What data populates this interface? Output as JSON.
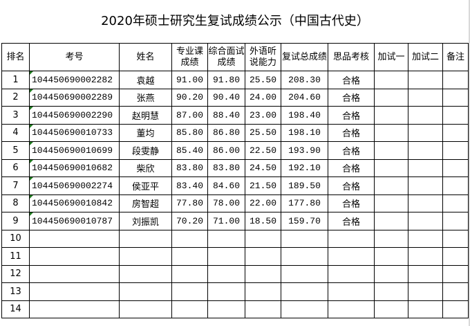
{
  "title": "2020年硕士研究生复试成绩公示（中国古代史）",
  "headers": [
    "排名",
    "考号",
    "姓名",
    "专业课成绩",
    "综合面试成绩",
    "外语听说能力",
    "复试总成绩",
    "思品考核",
    "加试一",
    "加试二",
    "备注"
  ],
  "rows": [
    {
      "rank": "1",
      "id": "104450690002282",
      "name": "袁越",
      "major": "91.00",
      "interview": "91.80",
      "language": "25.50",
      "total": "208.30",
      "moral": "合格",
      "extra1": "",
      "extra2": "",
      "note": ""
    },
    {
      "rank": "2",
      "id": "104450690002289",
      "name": "张燕",
      "major": "90.20",
      "interview": "90.40",
      "language": "24.00",
      "total": "204.60",
      "moral": "合格",
      "extra1": "",
      "extra2": "",
      "note": ""
    },
    {
      "rank": "3",
      "id": "104450690002290",
      "name": "赵明慧",
      "major": "87.00",
      "interview": "88.40",
      "language": "23.00",
      "total": "198.40",
      "moral": "合格",
      "extra1": "",
      "extra2": "",
      "note": ""
    },
    {
      "rank": "4",
      "id": "104450690010733",
      "name": "董均",
      "major": "85.80",
      "interview": "86.80",
      "language": "25.50",
      "total": "198.10",
      "moral": "合格",
      "extra1": "",
      "extra2": "",
      "note": ""
    },
    {
      "rank": "5",
      "id": "104450690010699",
      "name": "段雯静",
      "major": "85.40",
      "interview": "86.00",
      "language": "22.50",
      "total": "193.90",
      "moral": "合格",
      "extra1": "",
      "extra2": "",
      "note": ""
    },
    {
      "rank": "6",
      "id": "104450690010682",
      "name": "柴欣",
      "major": "83.80",
      "interview": "83.80",
      "language": "24.50",
      "total": "192.10",
      "moral": "合格",
      "extra1": "",
      "extra2": "",
      "note": ""
    },
    {
      "rank": "7",
      "id": "104450690002274",
      "name": "侯亚平",
      "major": "83.40",
      "interview": "84.60",
      "language": "21.50",
      "total": "189.50",
      "moral": "合格",
      "extra1": "",
      "extra2": "",
      "note": ""
    },
    {
      "rank": "8",
      "id": "104450690010842",
      "name": "房智超",
      "major": "77.80",
      "interview": "78.00",
      "language": "22.00",
      "total": "177.80",
      "moral": "合格",
      "extra1": "",
      "extra2": "",
      "note": ""
    },
    {
      "rank": "9",
      "id": "104450690010787",
      "name": "刘振凯",
      "major": "70.20",
      "interview": "71.00",
      "language": "18.50",
      "total": "159.70",
      "moral": "合格",
      "extra1": "",
      "extra2": "",
      "note": ""
    },
    {
      "rank": "10",
      "id": "",
      "name": "",
      "major": "",
      "interview": "",
      "language": "",
      "total": "",
      "moral": "",
      "extra1": "",
      "extra2": "",
      "note": ""
    },
    {
      "rank": "11",
      "id": "",
      "name": "",
      "major": "",
      "interview": "",
      "language": "",
      "total": "",
      "moral": "",
      "extra1": "",
      "extra2": "",
      "note": ""
    },
    {
      "rank": "12",
      "id": "",
      "name": "",
      "major": "",
      "interview": "",
      "language": "",
      "total": "",
      "moral": "",
      "extra1": "",
      "extra2": "",
      "note": ""
    },
    {
      "rank": "13",
      "id": "",
      "name": "",
      "major": "",
      "interview": "",
      "language": "",
      "total": "",
      "moral": "",
      "extra1": "",
      "extra2": "",
      "note": ""
    },
    {
      "rank": "14",
      "id": "",
      "name": "",
      "major": "",
      "interview": "",
      "language": "",
      "total": "",
      "moral": "",
      "extra1": "",
      "extra2": "",
      "note": ""
    }
  ],
  "colors": {
    "text": "#000000",
    "border": "#000000",
    "cell_marker": "#1e7a1e"
  }
}
